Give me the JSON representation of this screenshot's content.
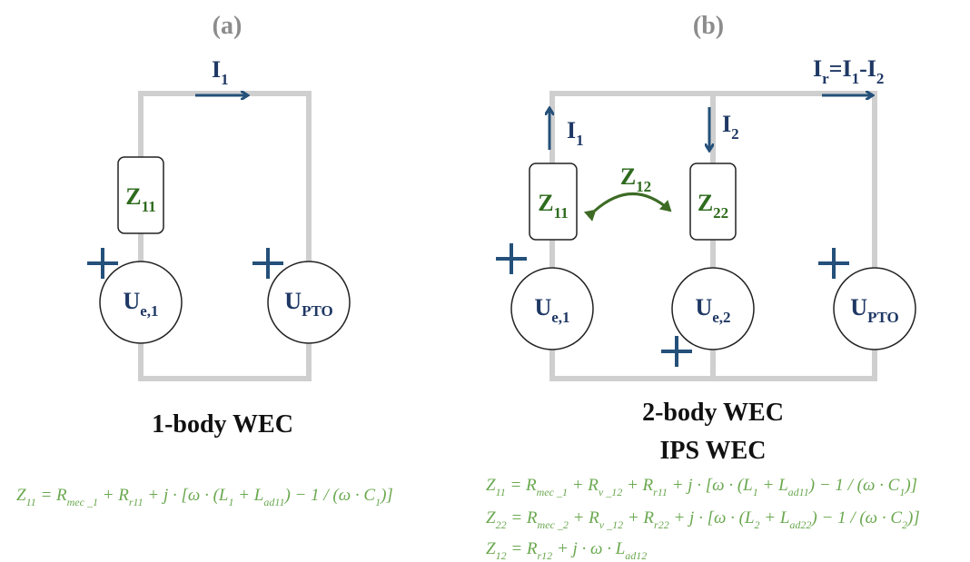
{
  "panel_a": {
    "label": "(a)",
    "current": [
      "I",
      "1"
    ],
    "impedance": [
      "Z",
      "11"
    ],
    "source": [
      "U",
      "e,1"
    ],
    "pto": [
      "U",
      "PTO"
    ],
    "caption": "1-body WEC",
    "equation": [
      "Z",
      "11",
      " = R",
      "mec _1",
      " + R",
      "r11",
      " + j · [ω · (L",
      "1",
      " + L",
      "ad11",
      ") − 1 / (ω · C",
      "1",
      ")]"
    ]
  },
  "panel_b": {
    "label": "(b)",
    "current_1": [
      "I",
      "1"
    ],
    "current_2": [
      "I",
      "2"
    ],
    "current_r": [
      "I",
      "r",
      "=I",
      "1",
      "-I",
      "2"
    ],
    "impedance_1": [
      "Z",
      "11"
    ],
    "impedance_2": [
      "Z",
      "22"
    ],
    "coupling": [
      "Z",
      "12"
    ],
    "source_1": [
      "U",
      "e,1"
    ],
    "source_2": [
      "U",
      "e,2"
    ],
    "pto": [
      "U",
      "PTO"
    ],
    "captions": [
      "2-body WEC",
      "IPS WEC"
    ],
    "equations": [
      [
        "Z",
        "11",
        " = R",
        "mec _1",
        " + R",
        "v _12",
        " + R",
        "r11",
        " + j · [ω · (L",
        "1",
        " + L",
        "ad11",
        ") − 1 / (ω · C",
        "1",
        ")]"
      ],
      [
        "Z",
        "22",
        " = R",
        "mec _2",
        " + R",
        "v _12",
        " + R",
        "r22",
        " + j · [ω · (L",
        "2",
        " + L",
        "ad22",
        ") − 1 / (ω · C",
        "2",
        ")]"
      ],
      [
        "Z",
        "12",
        " = R",
        "r12",
        " + j · ω · L",
        "ad12"
      ]
    ]
  }
}
